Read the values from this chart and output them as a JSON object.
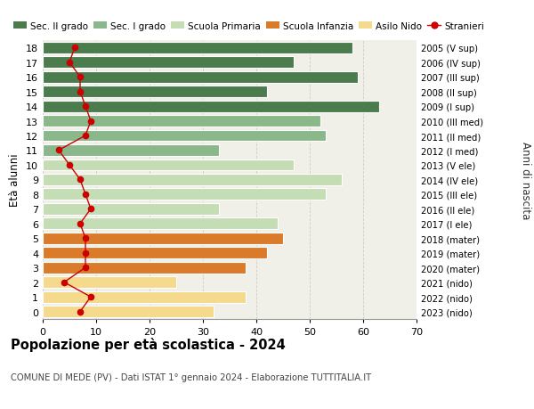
{
  "ages": [
    18,
    17,
    16,
    15,
    14,
    13,
    12,
    11,
    10,
    9,
    8,
    7,
    6,
    5,
    4,
    3,
    2,
    1,
    0
  ],
  "bar_values": [
    58,
    47,
    59,
    42,
    63,
    52,
    53,
    33,
    47,
    56,
    53,
    33,
    44,
    45,
    42,
    38,
    25,
    38,
    32
  ],
  "bar_colors": [
    "#4a7c4e",
    "#4a7c4e",
    "#4a7c4e",
    "#4a7c4e",
    "#4a7c4e",
    "#8ab88a",
    "#8ab88a",
    "#8ab88a",
    "#c5ddb5",
    "#c5ddb5",
    "#c5ddb5",
    "#c5ddb5",
    "#c5ddb5",
    "#d97b2a",
    "#d97b2a",
    "#d97b2a",
    "#f5d98c",
    "#f5d98c",
    "#f5d98c"
  ],
  "stranieri_values": [
    6,
    5,
    7,
    7,
    8,
    9,
    8,
    3,
    5,
    7,
    8,
    9,
    7,
    8,
    8,
    8,
    4,
    9,
    7
  ],
  "right_labels": [
    "2005 (V sup)",
    "2006 (IV sup)",
    "2007 (III sup)",
    "2008 (II sup)",
    "2009 (I sup)",
    "2010 (III med)",
    "2011 (II med)",
    "2012 (I med)",
    "2013 (V ele)",
    "2014 (IV ele)",
    "2015 (III ele)",
    "2016 (II ele)",
    "2017 (I ele)",
    "2018 (mater)",
    "2019 (mater)",
    "2020 (mater)",
    "2021 (nido)",
    "2022 (nido)",
    "2023 (nido)"
  ],
  "legend_labels": [
    "Sec. II grado",
    "Sec. I grado",
    "Scuola Primaria",
    "Scuola Infanzia",
    "Asilo Nido",
    "Stranieri"
  ],
  "legend_colors": [
    "#4a7c4e",
    "#8ab88a",
    "#c5ddb5",
    "#d97b2a",
    "#f5d98c",
    "#cc0000"
  ],
  "ylabel": "Età alunni",
  "right_ylabel": "Anni di nascita",
  "title": "Popolazione per età scolastica - 2024",
  "subtitle": "COMUNE DI MEDE (PV) - Dati ISTAT 1° gennaio 2024 - Elaborazione TUTTITALIA.IT",
  "xlim": [
    0,
    70
  ],
  "xticks": [
    0,
    10,
    20,
    30,
    40,
    50,
    60,
    70
  ],
  "bg_color": "#ffffff",
  "bar_bg_color": "#f0f0e8",
  "stranieri_color": "#cc0000",
  "grid_color": "#cccccc"
}
